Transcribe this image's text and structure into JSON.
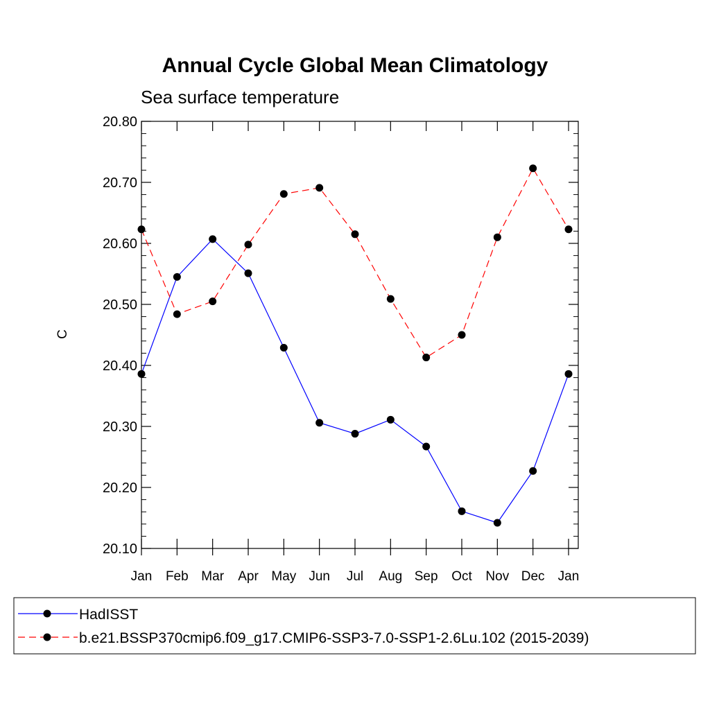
{
  "chart_data": {
    "type": "line",
    "title": "Annual Cycle Global Mean Climatology",
    "subtitle": "Sea surface temperature",
    "xlabel": "",
    "ylabel": "C",
    "categories": [
      "Jan",
      "Feb",
      "Mar",
      "Apr",
      "May",
      "Jun",
      "Jul",
      "Aug",
      "Sep",
      "Oct",
      "Nov",
      "Dec",
      "Jan"
    ],
    "ylim": [
      20.1,
      20.8
    ],
    "yticks": [
      "20.10",
      "20.20",
      "20.30",
      "20.40",
      "20.50",
      "20.60",
      "20.70",
      "20.80"
    ],
    "grid": false,
    "legend_position": "bottom",
    "series": [
      {
        "name": "HadISST",
        "color": "#0000ff",
        "dash": "solid",
        "marker": "filled-circle",
        "values": [
          20.386,
          20.545,
          20.607,
          20.551,
          20.429,
          20.306,
          20.288,
          20.311,
          20.267,
          20.161,
          20.142,
          20.227,
          20.386
        ]
      },
      {
        "name": "b.e21.BSSP370cmip6.f09_g17.CMIP6-SSP3-7.0-SSP1-2.6Lu.102 (2015-2039)",
        "color": "#ff0000",
        "dash": "dashed",
        "marker": "filled-circle",
        "values": [
          20.623,
          20.484,
          20.505,
          20.598,
          20.681,
          20.691,
          20.615,
          20.509,
          20.413,
          20.45,
          20.61,
          20.723,
          20.623
        ]
      }
    ]
  }
}
